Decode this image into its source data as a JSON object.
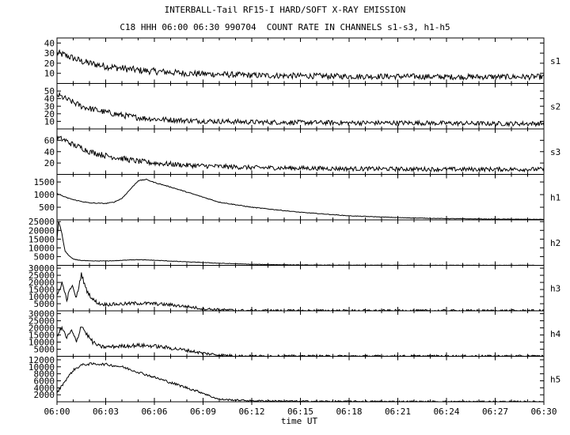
{
  "title_line1": "INTERBALL-Tail RF15-I HARD/SOFT X-RAY EMISSION",
  "title_line2": "C18 HHH 06:00 06:30 990704  COUNT RATE IN CHANNELS s1-s3, h1-h5",
  "chart_data": {
    "type": "line",
    "title": "INTERBALL-Tail RF15-I HARD/SOFT X-RAY EMISSION",
    "subtitle": "C18 HHH 06:00 06:30 990704  COUNT RATE IN CHANNELS s1-s3, h1-h5",
    "xlabel": "time UT",
    "x_range_minutes": [
      0,
      30
    ],
    "x_ticks": [
      "06:00",
      "06:03",
      "06:06",
      "06:09",
      "06:12",
      "06:15",
      "06:18",
      "06:21",
      "06:24",
      "06:27",
      "06:30"
    ],
    "grid": false,
    "panels": [
      {
        "name": "s1",
        "ylim": [
          0,
          45
        ],
        "yticks": [
          "10",
          "20",
          "30",
          "40"
        ],
        "tick_values": [
          10,
          20,
          30,
          40
        ],
        "series_t": [
          0,
          0.5,
          1,
          1.5,
          2,
          3,
          4,
          5,
          6,
          8,
          10,
          12,
          15,
          18,
          21,
          24,
          27,
          30
        ],
        "series_y": [
          30,
          28,
          25,
          22,
          20,
          17,
          15,
          13,
          12,
          10,
          9,
          8,
          7.5,
          7,
          7,
          6.5,
          6.5,
          6.5
        ],
        "noise": 3.5
      },
      {
        "name": "s2",
        "ylim": [
          0,
          60
        ],
        "yticks": [
          "10",
          "20",
          "30",
          "40",
          "50"
        ],
        "tick_values": [
          10,
          20,
          30,
          40,
          50
        ],
        "series_t": [
          0,
          0.5,
          1,
          1.5,
          2,
          3,
          4,
          5,
          6,
          8,
          10,
          12,
          15,
          18,
          21,
          24,
          27,
          30
        ],
        "series_y": [
          45,
          40,
          35,
          30,
          27,
          22,
          18,
          15,
          13,
          11,
          10,
          9,
          8.5,
          8,
          8,
          7.5,
          7,
          7
        ],
        "noise": 4
      },
      {
        "name": "s3",
        "ylim": [
          0,
          80
        ],
        "yticks": [
          "20",
          "40",
          "60"
        ],
        "tick_values": [
          20,
          40,
          60
        ],
        "series_t": [
          0,
          0.5,
          1,
          1.5,
          2,
          3,
          4,
          5,
          6,
          8,
          10,
          12,
          15,
          18,
          21,
          24,
          27,
          30
        ],
        "series_y": [
          65,
          60,
          52,
          47,
          40,
          33,
          28,
          23,
          20,
          16,
          14,
          12,
          11,
          10,
          9.5,
          9,
          9,
          9
        ],
        "noise": 5
      },
      {
        "name": "h1",
        "ylim": [
          0,
          1800
        ],
        "yticks": [
          "500",
          "1000",
          "1500"
        ],
        "tick_values": [
          500,
          1000,
          1500
        ],
        "series_t": [
          0,
          0.5,
          1,
          1.5,
          2,
          3,
          3.5,
          4,
          4.5,
          5,
          5.5,
          6,
          7,
          8,
          9,
          10,
          12,
          15,
          18,
          21,
          24,
          27,
          30
        ],
        "series_y": [
          1050,
          900,
          800,
          730,
          670,
          650,
          700,
          850,
          1200,
          1550,
          1600,
          1480,
          1300,
          1100,
          900,
          700,
          500,
          300,
          160,
          90,
          50,
          30,
          20
        ],
        "noise": 15
      },
      {
        "name": "h2",
        "ylim": [
          0,
          26000
        ],
        "yticks": [
          "5000",
          "10000",
          "15000",
          "20000",
          "25000"
        ],
        "tick_values": [
          5000,
          10000,
          15000,
          20000,
          25000
        ],
        "series_t": [
          0,
          0.1,
          0.2,
          0.3,
          0.5,
          0.8,
          1,
          1.5,
          2,
          3,
          4,
          4.5,
          5,
          6,
          8,
          10,
          12,
          15,
          18,
          21,
          24,
          27,
          30
        ],
        "series_y": [
          15000,
          25000,
          22000,
          18000,
          8000,
          5000,
          3500,
          2800,
          2500,
          2500,
          2800,
          3200,
          3200,
          2900,
          2000,
          1200,
          600,
          200,
          100,
          60,
          40,
          30,
          20
        ],
        "noise": 200
      },
      {
        "name": "h3",
        "ylim": [
          0,
          32000
        ],
        "yticks": [
          "5000",
          "10000",
          "15000",
          "20000",
          "25000",
          "30000"
        ],
        "tick_values": [
          5000,
          10000,
          15000,
          20000,
          25000,
          30000
        ],
        "series_t": [
          0,
          0.3,
          0.6,
          0.9,
          1.2,
          1.5,
          1.8,
          2.2,
          2.6,
          3,
          4,
          5,
          6,
          7,
          8,
          9,
          10,
          11,
          12,
          14,
          16,
          18,
          20,
          22,
          25,
          30
        ],
        "series_y": [
          10000,
          20000,
          8000,
          18000,
          9000,
          26000,
          15000,
          8000,
          5000,
          4500,
          4800,
          5400,
          5000,
          4200,
          3000,
          1500,
          800,
          300,
          100,
          80,
          60,
          40,
          30,
          20,
          15,
          10
        ],
        "noise": 1500
      },
      {
        "name": "h4",
        "ylim": [
          0,
          32000
        ],
        "yticks": [
          "5000",
          "10000",
          "15000",
          "20000",
          "25000",
          "30000"
        ],
        "tick_values": [
          5000,
          10000,
          15000,
          20000,
          25000,
          30000
        ],
        "series_t": [
          0,
          0.3,
          0.6,
          0.9,
          1.2,
          1.5,
          1.8,
          2.2,
          2.6,
          3,
          4,
          5,
          6,
          7,
          8,
          9,
          10,
          11,
          12,
          14,
          16,
          18,
          20,
          22,
          25,
          30
        ],
        "series_y": [
          15000,
          20000,
          13000,
          18000,
          10000,
          22000,
          16000,
          10000,
          7000,
          6500,
          7200,
          7700,
          7200,
          5800,
          4200,
          2200,
          900,
          300,
          100,
          80,
          60,
          40,
          30,
          20,
          15,
          10
        ],
        "noise": 1500
      },
      {
        "name": "h5",
        "ylim": [
          0,
          13000
        ],
        "yticks": [
          "2000",
          "4000",
          "6000",
          "8000",
          "10000",
          "12000"
        ],
        "tick_values": [
          2000,
          4000,
          6000,
          8000,
          10000,
          12000
        ],
        "series_t": [
          0,
          0.5,
          1,
          1.5,
          2,
          2.5,
          3,
          4,
          5,
          6,
          7,
          8,
          9,
          9.5,
          10,
          12,
          15,
          20,
          25,
          30
        ],
        "series_y": [
          2500,
          6000,
          9000,
          10500,
          10800,
          10800,
          10700,
          10000,
          8500,
          7000,
          5500,
          4000,
          2500,
          1500,
          700,
          300,
          150,
          80,
          50,
          40
        ],
        "noise": 350
      }
    ]
  }
}
